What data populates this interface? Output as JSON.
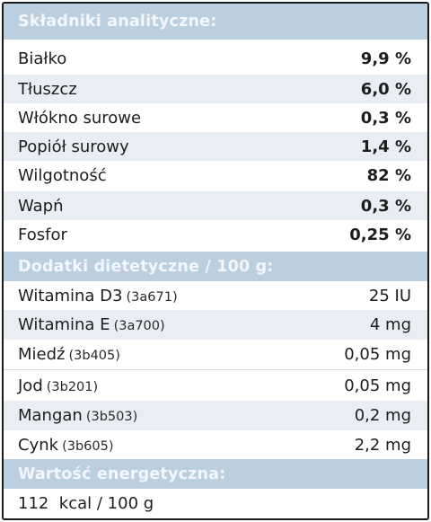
{
  "sections": {
    "analytical": {
      "title": "Składniki analityczne:",
      "rows": [
        {
          "label": "Białko",
          "value": "9,9 %"
        },
        {
          "label": "Tłuszcz",
          "value": "6,0 %"
        },
        {
          "label": "Włókno surowe",
          "value": "0,3 %"
        },
        {
          "label": "Popiół surowy",
          "value": "1,4 %"
        },
        {
          "label": "Wilgotność",
          "value": "82 %"
        },
        {
          "label": "Wapń",
          "value": "0,3 %"
        },
        {
          "label": "Fosfor",
          "value": "0,25 %"
        }
      ]
    },
    "additives": {
      "title": "Dodatki dietetyczne / 100 g:",
      "rows": [
        {
          "label": "Witamina D3",
          "code": "(3a671)",
          "value": "25 IU"
        },
        {
          "label": "Witamina E",
          "code": "(3a700)",
          "value": "4 mg"
        },
        {
          "label": "Miedź",
          "code": "(3b405)",
          "value": "0,05 mg"
        },
        {
          "label": "Jod",
          "code": "(3b201)",
          "value": "0,05 mg"
        },
        {
          "label": "Mangan",
          "code": "(3b503)",
          "value": "0,2 mg"
        },
        {
          "label": "Cynk",
          "code": "(3b605)",
          "value": "2,2 mg"
        }
      ]
    },
    "energy": {
      "title": "Wartość energetyczna:",
      "value": "112  kcal / 100 g"
    }
  }
}
